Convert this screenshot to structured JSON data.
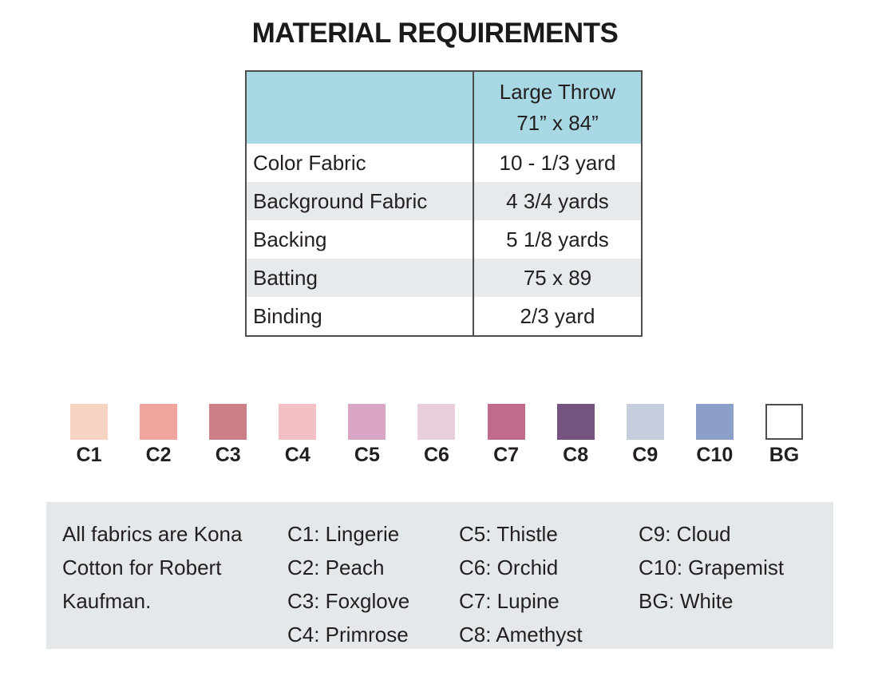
{
  "title": "MATERIAL REQUIREMENTS",
  "table": {
    "header": {
      "line1": "Large Throw",
      "line2": "71” x 84”"
    },
    "rows": [
      {
        "label": "Color Fabric",
        "value": "10 - 1/3 yard"
      },
      {
        "label": "Background Fabric",
        "value": "4 3/4 yards"
      },
      {
        "label": "Backing",
        "value": "5 1/8 yards"
      },
      {
        "label": "Batting",
        "value": "75 x 89"
      },
      {
        "label": "Binding",
        "value": "2/3 yard"
      }
    ]
  },
  "swatches": [
    {
      "code": "C1",
      "name": "Lingerie",
      "color": "#f8d3c1"
    },
    {
      "code": "C2",
      "name": "Peach",
      "color": "#f0a49e"
    },
    {
      "code": "C3",
      "name": "Foxglove",
      "color": "#cb7f87"
    },
    {
      "code": "C4",
      "name": "Primrose",
      "color": "#f2c0c4"
    },
    {
      "code": "C5",
      "name": "Thistle",
      "color": "#d9a6c6"
    },
    {
      "code": "C6",
      "name": "Orchid",
      "color": "#e9cfdd"
    },
    {
      "code": "C7",
      "name": "Lupine",
      "color": "#c06a8e"
    },
    {
      "code": "C8",
      "name": "Amethyst",
      "color": "#745380"
    },
    {
      "code": "C9",
      "name": "Cloud",
      "color": "#c6cede"
    },
    {
      "code": "C10",
      "name": "Grapemist",
      "color": "#8c9fc9"
    },
    {
      "code": "BG",
      "name": "White",
      "color": "#ffffff"
    }
  ],
  "legend": {
    "note": "All fabrics are Kona Cotton for Robert Kaufman.",
    "columns": [
      [
        "C1: Lingerie",
        "C2: Peach",
        "C3: Foxglove",
        "C4: Primrose"
      ],
      [
        "C5: Thistle",
        "C6: Orchid",
        "C7: Lupine",
        "C8: Amethyst"
      ],
      [
        "C9: Cloud",
        "C10: Grapemist",
        "BG: White"
      ]
    ]
  },
  "colors": {
    "header_bg": "#a9d8e5",
    "row_stripe_bg": "#e7eaec",
    "legend_bg": "#e4e8ea",
    "table_border": "#4d4d4f",
    "text": "#231f20"
  }
}
